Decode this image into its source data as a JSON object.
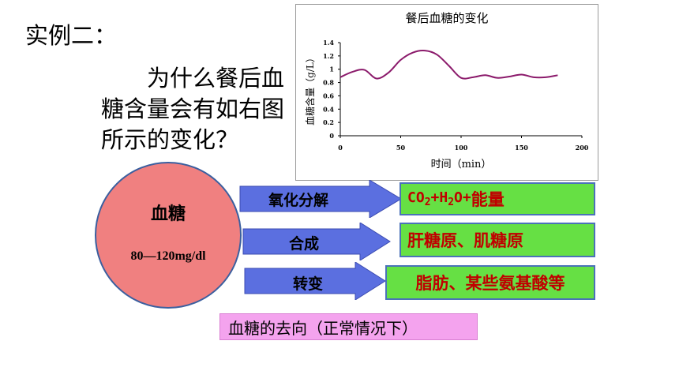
{
  "slide": {
    "title": "实例二：",
    "question": "为什么餐后血糖含量会有如右图所示的变化？",
    "blood_sugar": {
      "title": "血糖",
      "range": "80—120mg/dl"
    },
    "pathways": [
      {
        "arrow_label": "氧化分解",
        "result": "CO2+H2O+能量"
      },
      {
        "arrow_label": "合成",
        "result": "肝糖原、肌糖原"
      },
      {
        "arrow_label": "转变",
        "result": "脂肪、某些氨基酸等"
      }
    ],
    "caption": "血糖的去向（正常情况下）",
    "colors": {
      "circle_fill": "#f08080",
      "arrow_fill": "#5b6fe0",
      "result_box_fill": "#66e044",
      "result_text": "#c00000",
      "caption_fill": "#f4a3ee",
      "curve": "#8b1a6b"
    }
  },
  "chart_data": {
    "type": "line",
    "title": "餐后血糖的变化",
    "xlabel": "时间（min）",
    "ylabel": "血糖含量（g/L）",
    "xlim": [
      0,
      200
    ],
    "ylim": [
      0,
      1.4
    ],
    "xticks": [
      0,
      50,
      100,
      150,
      200
    ],
    "yticks": [
      0,
      0.2,
      0.4,
      0.6,
      0.8,
      1,
      1.2,
      1.4
    ],
    "series": [
      {
        "x": [
          0,
          10,
          20,
          30,
          40,
          50,
          60,
          70,
          80,
          90,
          100,
          110,
          120,
          130,
          140,
          150,
          160,
          170,
          180
        ],
        "values": [
          0.88,
          0.96,
          0.99,
          0.86,
          0.95,
          1.14,
          1.25,
          1.28,
          1.22,
          1.05,
          0.87,
          0.88,
          0.91,
          0.87,
          0.89,
          0.92,
          0.88,
          0.88,
          0.91
        ]
      }
    ]
  }
}
